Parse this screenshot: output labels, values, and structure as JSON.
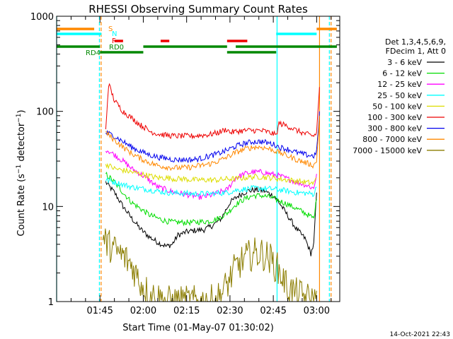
{
  "chart_data": {
    "type": "line",
    "title": "RHESSI Observing Summary Count Rates",
    "xlabel": "Start Time (01-May-07 01:30:02)",
    "ylabel": "Count Rate (s⁻¹ detector⁻¹)",
    "yscale": "log",
    "ylim": [
      1,
      1000
    ],
    "xlim_minutes": [
      0,
      98
    ],
    "x_ticks": [
      {
        "t": 15,
        "label": "01:45"
      },
      {
        "t": 30,
        "label": "02:00"
      },
      {
        "t": 45,
        "label": "02:15"
      },
      {
        "t": 60,
        "label": "02:30"
      },
      {
        "t": 75,
        "label": "02:45"
      },
      {
        "t": 90,
        "label": "03:00"
      }
    ],
    "y_ticks": [
      {
        "v": 1,
        "label": "1"
      },
      {
        "v": 10,
        "label": "10"
      },
      {
        "v": 100,
        "label": "100"
      },
      {
        "v": 1000,
        "label": "1000"
      }
    ],
    "legend_header": [
      "Det 1,3,4,5,6,9,",
      "FDecim 1, Att 0"
    ],
    "legend_position": "right",
    "series": [
      {
        "name": "3 - 6 keV",
        "color": "#000000",
        "x": [
          17,
          20,
          23,
          26,
          29,
          32,
          35,
          38,
          40,
          42,
          45,
          48,
          51,
          54,
          57,
          60,
          63,
          66,
          69,
          72,
          75,
          77,
          80,
          83,
          86,
          88,
          89,
          90
        ],
        "values": [
          18,
          14,
          10,
          7.5,
          5.8,
          4.8,
          4.2,
          3.8,
          4.0,
          5.0,
          5.4,
          5.6,
          5.7,
          6.3,
          7.5,
          11,
          13,
          14.5,
          15,
          14.5,
          13,
          11,
          8,
          5.8,
          4.6,
          3.2,
          4,
          14
        ]
      },
      {
        "name": "6 - 12 keV",
        "color": "#00dd00",
        "x": [
          17,
          20,
          23,
          26,
          29,
          32,
          35,
          38,
          41,
          44,
          47,
          50,
          53,
          56,
          59,
          62,
          65,
          68,
          71,
          74,
          77,
          80,
          83,
          86,
          89,
          90
        ],
        "values": [
          22,
          18,
          14,
          11,
          9.5,
          8.2,
          7.5,
          7.0,
          6.8,
          6.8,
          6.8,
          6.9,
          7.0,
          7.5,
          8.5,
          10.5,
          12,
          13,
          13,
          12.5,
          11.5,
          10.5,
          9.5,
          8.5,
          7.5,
          12
        ]
      },
      {
        "name": "12 - 25 keV",
        "color": "#ff00ff",
        "x": [
          17,
          20,
          23,
          26,
          29,
          32,
          35,
          38,
          41,
          44,
          47,
          50,
          53,
          56,
          59,
          62,
          65,
          68,
          71,
          74,
          77,
          80,
          83,
          86,
          89,
          90
        ],
        "values": [
          40,
          35,
          30,
          25,
          22,
          19,
          16,
          15,
          14,
          13.5,
          13,
          12.5,
          13,
          14,
          15,
          20,
          22,
          23,
          23,
          22,
          21,
          19.5,
          18,
          17,
          15.5,
          22
        ]
      },
      {
        "name": "25 - 50 keV",
        "color": "#00ffff",
        "x": [
          17,
          20,
          23,
          26,
          29,
          32,
          35,
          38,
          41,
          44,
          47,
          50,
          53,
          56,
          59,
          62,
          65,
          68,
          71,
          74,
          77,
          80,
          83,
          86,
          89,
          90
        ],
        "values": [
          19,
          18,
          17,
          16,
          15.5,
          15,
          14.5,
          14,
          13.8,
          13.8,
          13.6,
          13.6,
          13.6,
          13.8,
          14,
          14.8,
          15.2,
          15.5,
          15.5,
          15.3,
          15,
          14.5,
          14,
          13.8,
          13.5,
          16
        ]
      },
      {
        "name": "50 - 100 keV",
        "color": "#dddd00",
        "x": [
          17,
          20,
          23,
          26,
          29,
          32,
          35,
          38,
          41,
          44,
          47,
          50,
          53,
          56,
          59,
          62,
          65,
          68,
          71,
          74,
          77,
          80,
          83,
          86,
          89,
          90
        ],
        "values": [
          28,
          25,
          24,
          23,
          22,
          21,
          20,
          20,
          19.5,
          19.5,
          19,
          19,
          19,
          19,
          19.5,
          19.5,
          20,
          20.5,
          20.5,
          20,
          19.5,
          19,
          18.5,
          18,
          17.5,
          20
        ]
      },
      {
        "name": "100 - 300 keV",
        "color": "#ee0000",
        "x": [
          17,
          18,
          20,
          23,
          26,
          29,
          31,
          32,
          35,
          38,
          41,
          44,
          47,
          50,
          53,
          56,
          59,
          60,
          63,
          66,
          69,
          72,
          75,
          76,
          77,
          80,
          83,
          86,
          89,
          90,
          91
        ],
        "values": [
          65,
          195,
          130,
          100,
          85,
          72,
          66,
          62,
          58,
          56,
          55,
          55,
          55,
          56,
          57,
          60,
          65,
          60,
          62,
          63,
          63,
          62,
          58,
          56,
          75,
          70,
          63,
          58,
          55,
          60,
          180
        ]
      },
      {
        "name": "300 - 800 keV",
        "color": "#0000ee",
        "x": [
          17,
          20,
          23,
          26,
          29,
          32,
          35,
          38,
          41,
          44,
          47,
          50,
          53,
          56,
          59,
          62,
          65,
          68,
          71,
          74,
          76,
          77,
          80,
          83,
          86,
          89,
          90,
          91
        ],
        "values": [
          60,
          55,
          48,
          42,
          38,
          35,
          33,
          32,
          31,
          31,
          31,
          32,
          34,
          36,
          39,
          43,
          46,
          48,
          48,
          46,
          44,
          42,
          40,
          37,
          35,
          34,
          37,
          100
        ]
      },
      {
        "name": "800 - 7000 keV",
        "color": "#ff8800",
        "x": [
          17,
          20,
          23,
          26,
          29,
          32,
          35,
          38,
          41,
          44,
          47,
          50,
          53,
          56,
          59,
          62,
          65,
          68,
          71,
          74,
          76,
          77,
          80,
          83,
          86,
          89,
          90,
          91
        ],
        "values": [
          60,
          50,
          42,
          36,
          32,
          29,
          27,
          26,
          25.5,
          25.5,
          26,
          27,
          28,
          30,
          33,
          37,
          40,
          42,
          42,
          40,
          38,
          37,
          34,
          31,
          29,
          27,
          30,
          90
        ]
      },
      {
        "name": "7000 - 15000 keV",
        "color": "#8b7d00",
        "x": [
          16,
          20,
          23,
          26,
          29,
          32,
          35,
          38,
          41,
          44,
          47,
          50,
          53,
          56,
          59,
          62,
          65,
          68,
          71,
          74,
          77,
          80,
          83,
          86,
          89,
          90
        ],
        "values": [
          4.5,
          3.5,
          3.0,
          2.4,
          1.6,
          1.2,
          1.1,
          1.0,
          1.0,
          1.0,
          1.0,
          1.0,
          1.0,
          1.1,
          1.5,
          2.3,
          2.8,
          3.2,
          3.2,
          2.8,
          2.1,
          1.4,
          1.2,
          1.1,
          1.0,
          1.3
        ]
      }
    ],
    "flags": [
      {
        "name": "S",
        "color": "#ff8800",
        "segments": [
          [
            0,
            13
          ],
          [
            90,
            97
          ]
        ]
      },
      {
        "name": "N",
        "color": "#00ffff",
        "segments": [
          [
            0,
            15.5
          ],
          [
            76,
            90
          ]
        ]
      },
      {
        "name": "F",
        "color": "#ee0000",
        "segments": [
          [
            20,
            23
          ],
          [
            36,
            39
          ],
          [
            59,
            66
          ]
        ]
      },
      {
        "name": "RD0",
        "color": "#008800",
        "segments": [
          [
            0,
            15
          ],
          [
            30,
            59
          ],
          [
            62,
            97
          ]
        ]
      },
      {
        "name": "RD4",
        "color": "#008800",
        "segments": [
          [
            15,
            30
          ],
          [
            59,
            76
          ]
        ]
      }
    ],
    "vertical_markers": [
      {
        "t": 0,
        "color": "#00ffff",
        "style": "solid"
      },
      {
        "t": 14.8,
        "color": "#00ffff",
        "style": "dashed"
      },
      {
        "t": 15.4,
        "color": "#ff8800",
        "style": "dashed"
      },
      {
        "t": 76.3,
        "color": "#00ffff",
        "style": "solid"
      },
      {
        "t": 91,
        "color": "#ff8800",
        "style": "solid"
      },
      {
        "t": 94.4,
        "color": "#00ffff",
        "style": "dashed"
      },
      {
        "t": 95,
        "color": "#ff8800",
        "style": "dashed"
      }
    ],
    "footer_timestamp": "14-Oct-2021 22:43",
    "grid": false
  }
}
